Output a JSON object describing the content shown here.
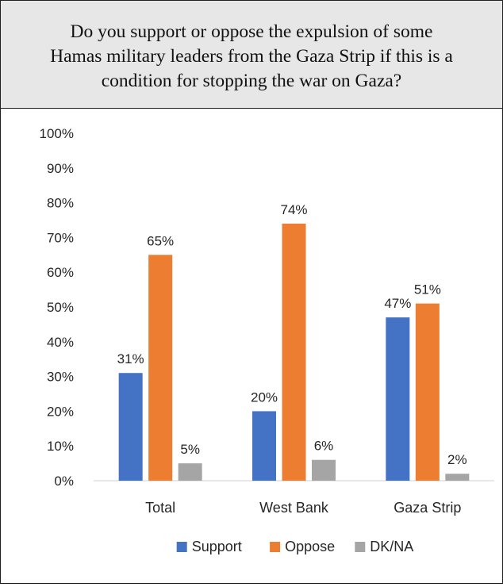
{
  "title": "Do you support or oppose the expulsion of some\nHamas military leaders from the Gaza Strip if this is a\ncondition for stopping the war on Gaza?",
  "chart_data": {
    "type": "bar",
    "title": "Do you support or oppose the expulsion of some Hamas military leaders from the Gaza Strip if this is a condition for stopping the war on Gaza?",
    "categories": [
      "Total",
      "West Bank",
      "Gaza Strip"
    ],
    "series": [
      {
        "name": "Support",
        "values": [
          31,
          20,
          47
        ],
        "color": "#4472c4"
      },
      {
        "name": "Oppose",
        "values": [
          65,
          74,
          51
        ],
        "color": "#ed7d31"
      },
      {
        "name": "DK/NA",
        "values": [
          5,
          6,
          2
        ],
        "color": "#a5a5a5"
      }
    ],
    "ylim": [
      0,
      100
    ],
    "yticks": [
      0,
      10,
      20,
      30,
      40,
      50,
      60,
      70,
      80,
      90,
      100
    ],
    "ytick_suffix": "%",
    "value_suffix": "%",
    "xlabel": "",
    "ylabel": "",
    "grid": false,
    "legend": "bottom"
  }
}
